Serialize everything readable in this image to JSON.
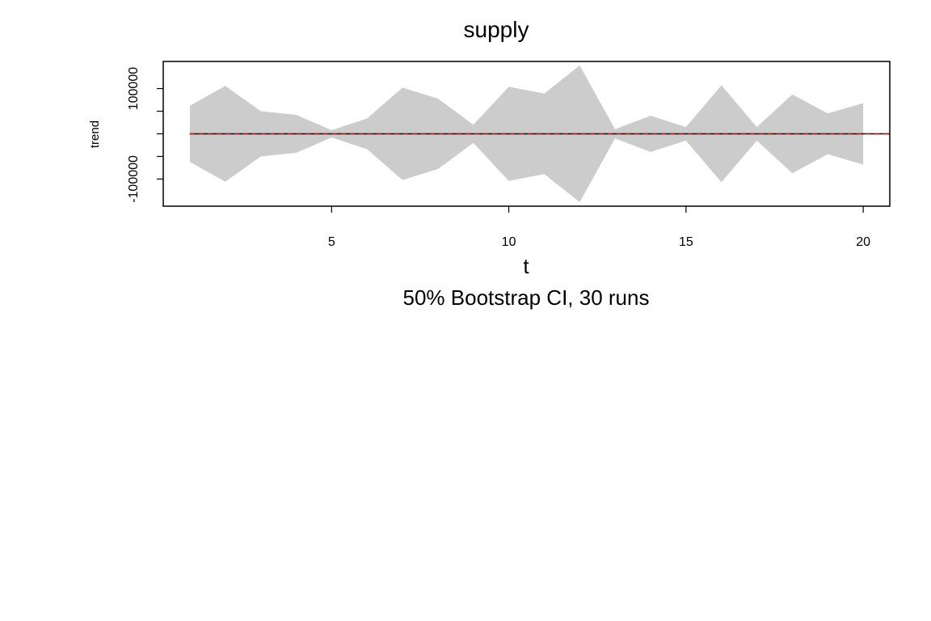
{
  "chart_data": {
    "type": "area",
    "title": "supply",
    "xlabel": "t",
    "ylabel": "trend",
    "subtitle": "50% Bootstrap CI, 30 runs",
    "xlim": [
      0.25,
      20.75
    ],
    "ylim": [
      -160000,
      160000
    ],
    "x_ticks": [
      5,
      10,
      15,
      20
    ],
    "y_ticks": [
      -100000,
      -50000,
      0,
      50000,
      100000
    ],
    "y_tick_labels": [
      "-100000",
      "",
      "",
      "",
      "100000"
    ],
    "band_color": "#cccccc",
    "zero_line_color": "#000000",
    "mean_line_color": "#ff0000",
    "mean_value": 0,
    "zero_value": 0,
    "x": [
      1,
      2,
      3,
      4,
      5,
      6,
      7,
      8,
      9,
      10,
      11,
      12,
      13,
      14,
      15,
      16,
      17,
      18,
      19,
      20
    ],
    "upper": [
      62000,
      106000,
      50000,
      42000,
      8000,
      34000,
      102000,
      78000,
      20000,
      104000,
      89000,
      151000,
      10000,
      40000,
      15000,
      107000,
      15000,
      87000,
      45000,
      68000
    ],
    "lower": [
      -62000,
      -106000,
      -50000,
      -42000,
      -8000,
      -34000,
      -102000,
      -78000,
      -20000,
      -104000,
      -89000,
      -151000,
      -10000,
      -40000,
      -15000,
      -107000,
      -15000,
      -87000,
      -45000,
      -68000
    ]
  }
}
